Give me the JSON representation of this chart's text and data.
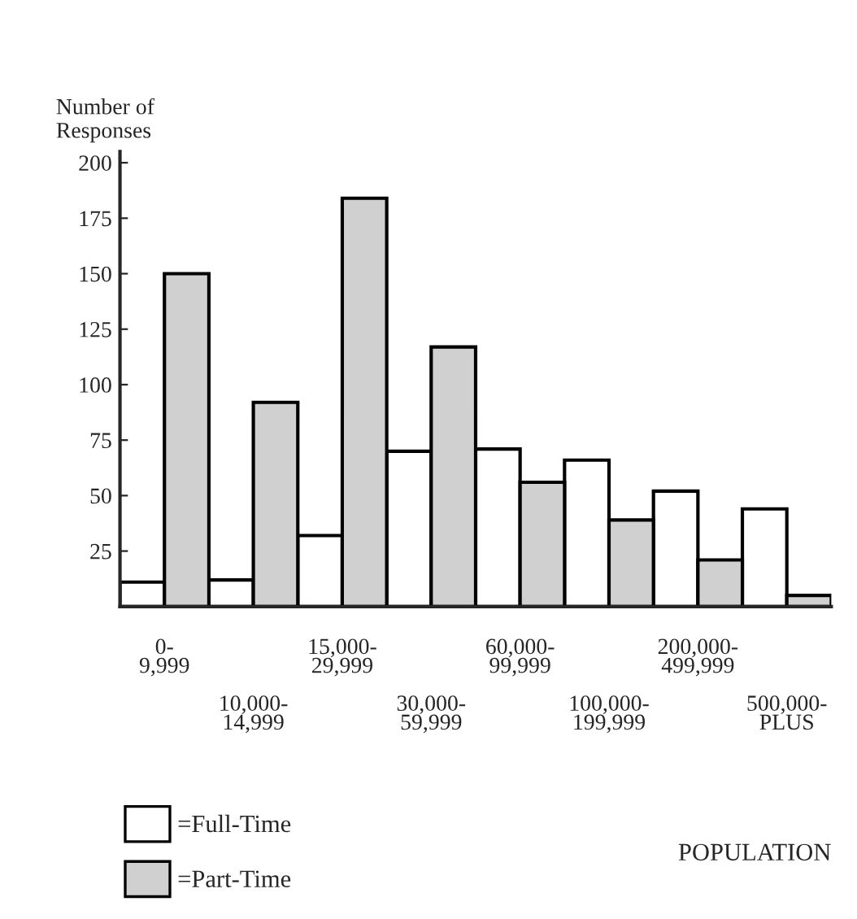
{
  "chart_data": {
    "type": "bar",
    "ylabel": "Number of\nResponses",
    "xlabel": "POPULATION",
    "categories": [
      "0-\n9,999",
      "10,000-\n14,999",
      "15,000-\n29,999",
      "30,000-\n59,999",
      "60,000-\n99,999",
      "100,000-\n199,999",
      "200,000-\n499,999",
      "500,000-\nPLUS"
    ],
    "series": [
      {
        "name": "=Full-Time",
        "color": "#ffffff",
        "values": [
          11,
          12,
          32,
          70,
          71,
          66,
          52,
          44
        ]
      },
      {
        "name": "=Part-Time",
        "color": "#d0d0d0",
        "values": [
          150,
          92,
          184,
          117,
          56,
          39,
          21,
          5
        ]
      }
    ],
    "ylim": [
      0,
      205
    ],
    "yticks": [
      25,
      50,
      75,
      100,
      125,
      150,
      175,
      200
    ],
    "grid": false,
    "legend": "bottom left"
  }
}
